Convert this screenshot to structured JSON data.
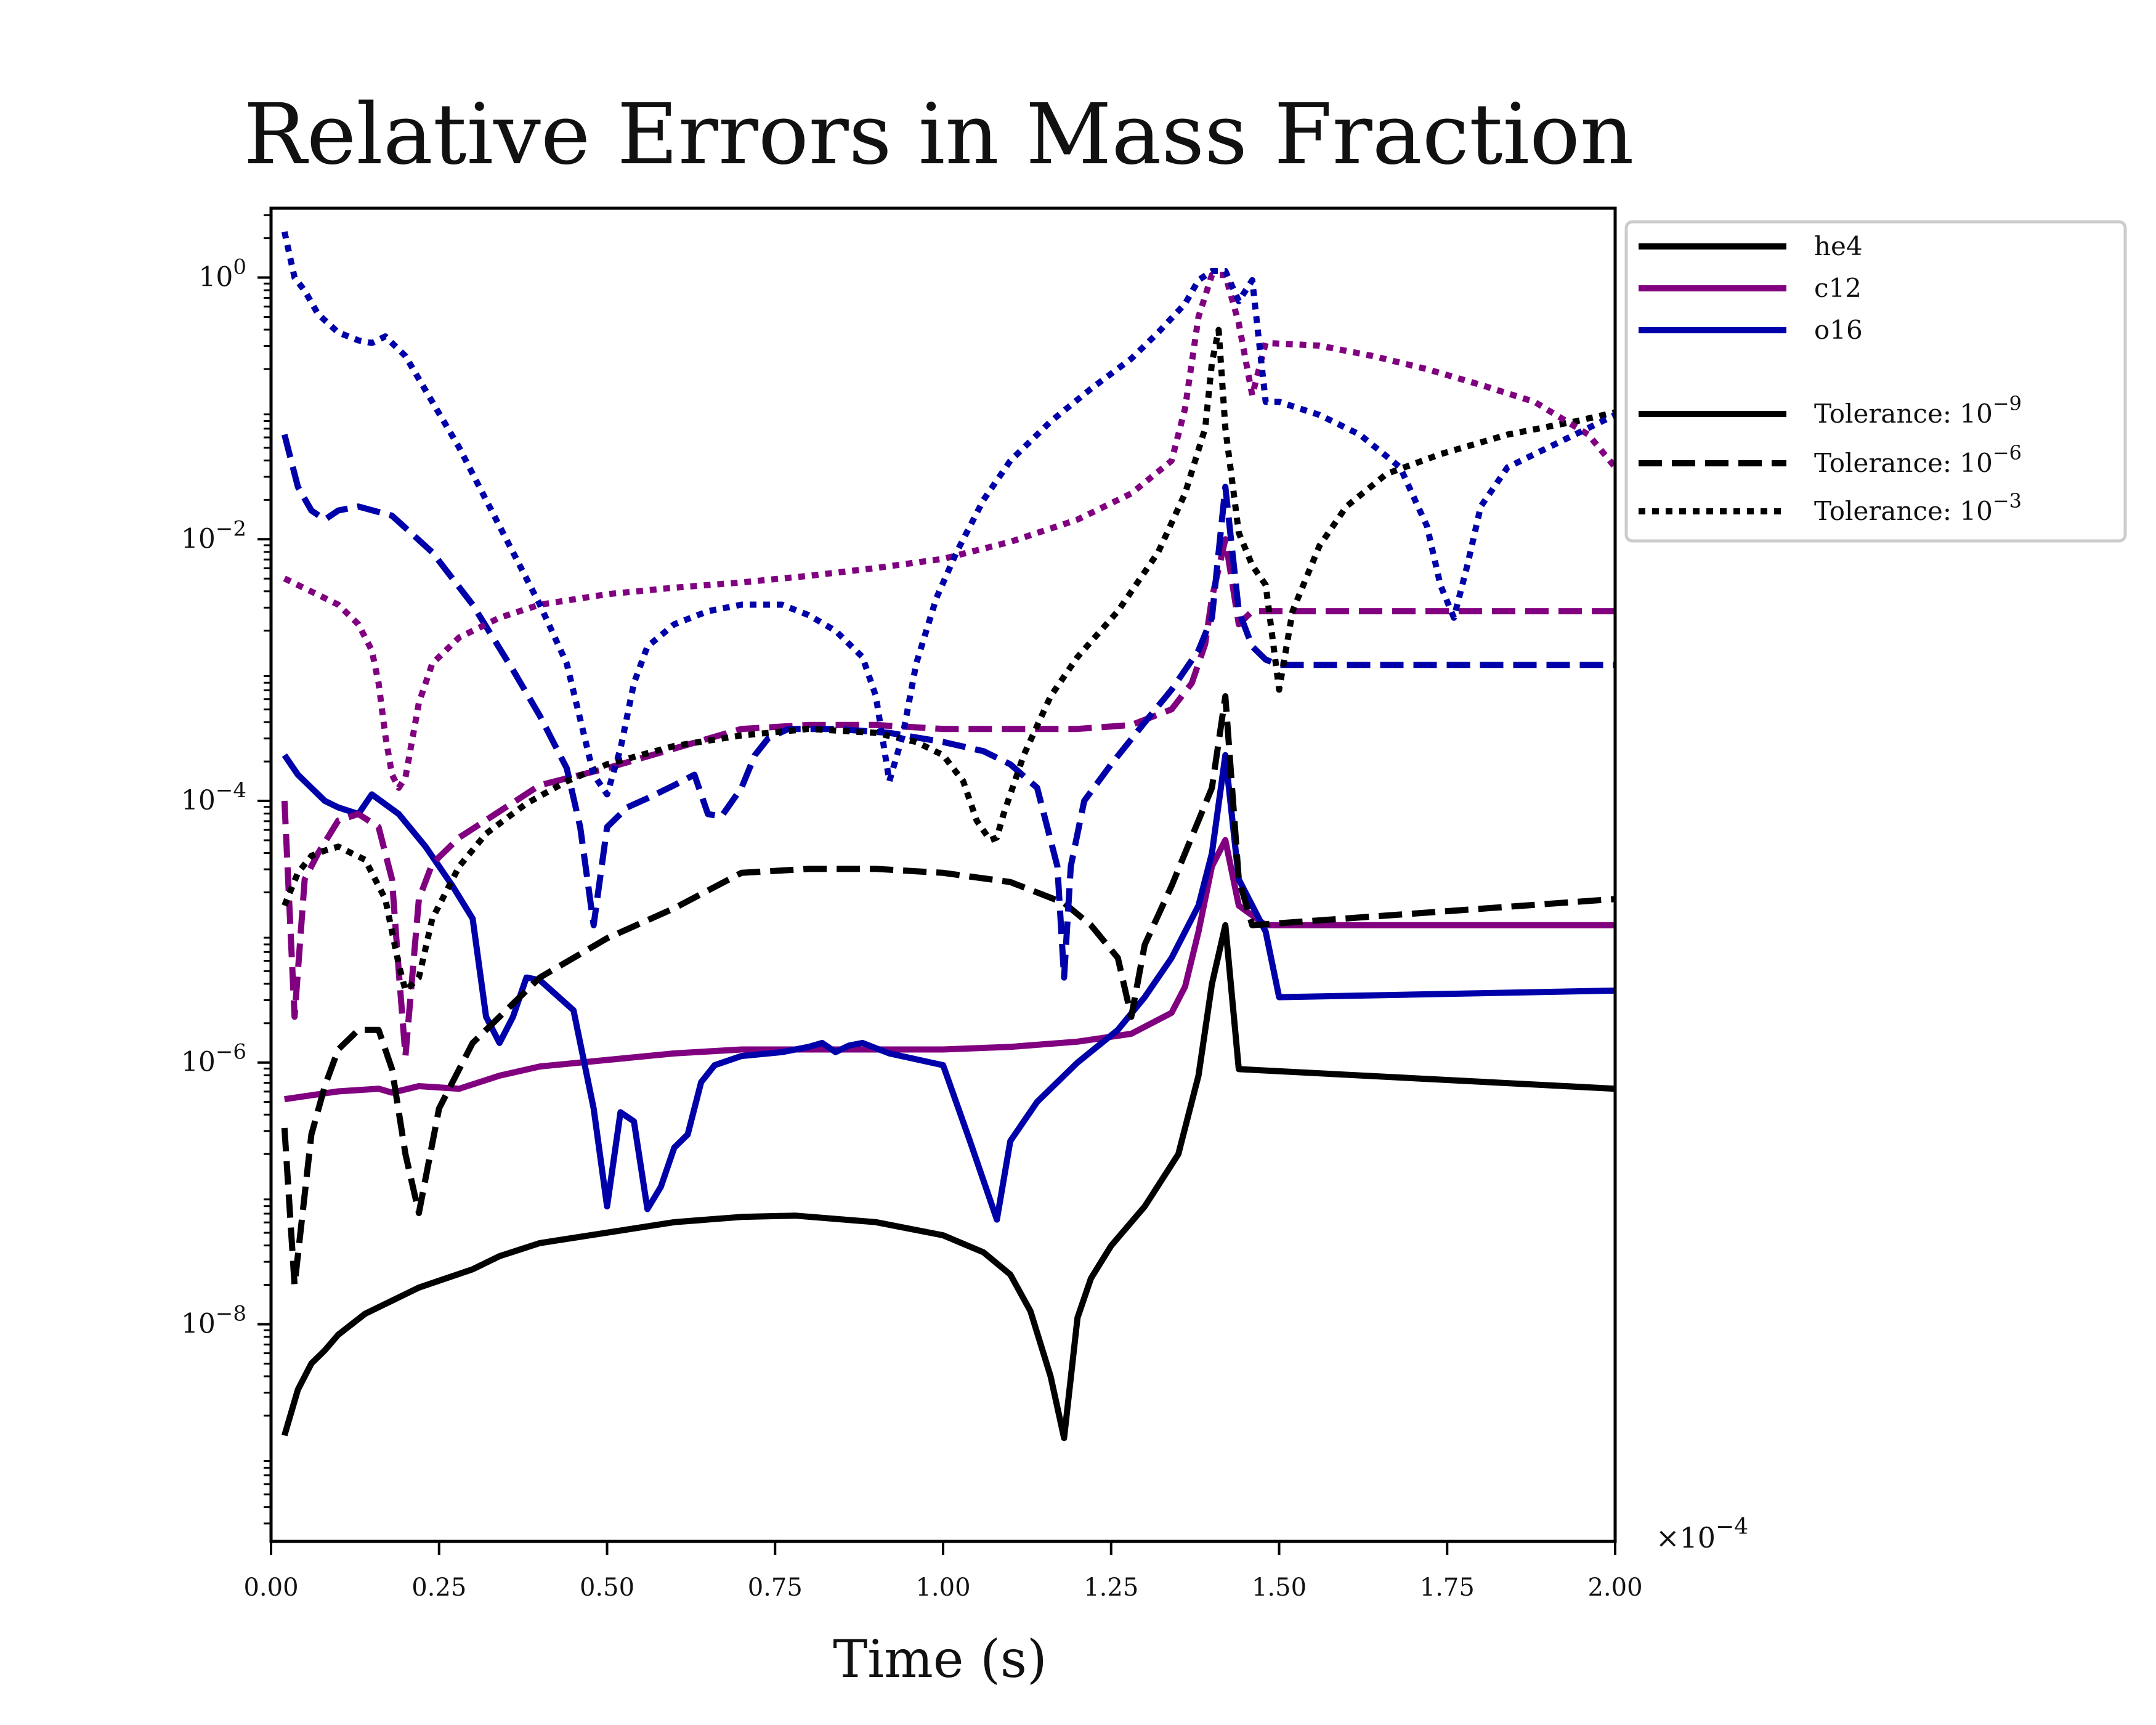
{
  "chart_data": {
    "type": "line",
    "title": "Relative Errors in Mass Fraction",
    "xlabel": "Time (s)",
    "ylabel": "",
    "x_multiplier_label": "×10",
    "x_multiplier_exp": "−4",
    "xlim": [
      0.0,
      2.0
    ],
    "ylim_log10": [
      -9.66,
      0.53
    ],
    "yscale": "log",
    "grid": false,
    "x_ticks": [
      "0.00",
      "0.25",
      "0.50",
      "0.75",
      "1.00",
      "1.25",
      "1.50",
      "1.75",
      "2.00"
    ],
    "y_ticks": [
      {
        "base": "10",
        "exp": "0",
        "log10": 0
      },
      {
        "base": "10",
        "exp": "−2",
        "log10": -2
      },
      {
        "base": "10",
        "exp": "−4",
        "log10": -4
      },
      {
        "base": "10",
        "exp": "−6",
        "log10": -6
      },
      {
        "base": "10",
        "exp": "−8",
        "log10": -8
      }
    ],
    "legend": {
      "placement": "outside-top-right",
      "species": [
        {
          "name": "he4",
          "color": "#000000"
        },
        {
          "name": "c12",
          "color": "#800080"
        },
        {
          "name": "o16",
          "color": "#0000aa"
        }
      ],
      "tolerances": [
        {
          "label": "Tolerance: 10",
          "exp": "−9",
          "style": "solid"
        },
        {
          "label": "Tolerance: 10",
          "exp": "−6",
          "style": "dashed"
        },
        {
          "label": "Tolerance: 10",
          "exp": "−3",
          "style": "dotted"
        }
      ]
    },
    "series": [
      {
        "species": "he4",
        "tolerance": "1e-9",
        "style": "solid",
        "color": "#000000",
        "x": [
          0.02,
          0.04,
          0.06,
          0.08,
          0.1,
          0.12,
          0.14,
          0.18,
          0.22,
          0.26,
          0.3,
          0.34,
          0.4,
          0.5,
          0.6,
          0.7,
          0.78,
          0.9,
          1.0,
          1.06,
          1.1,
          1.13,
          1.16,
          1.18,
          1.2,
          1.22,
          1.25,
          1.3,
          1.35,
          1.38,
          1.4,
          1.42,
          1.44,
          2.0
        ],
        "y": [
          -8.85,
          -8.5,
          -8.3,
          -8.2,
          -8.08,
          -8.0,
          -7.92,
          -7.82,
          -7.72,
          -7.65,
          -7.58,
          -7.48,
          -7.38,
          -7.3,
          -7.22,
          -7.18,
          -7.17,
          -7.22,
          -7.32,
          -7.45,
          -7.62,
          -7.9,
          -8.4,
          -8.87,
          -7.95,
          -7.65,
          -7.4,
          -7.1,
          -6.7,
          -6.1,
          -5.4,
          -4.95,
          -6.05,
          -6.2
        ]
      },
      {
        "species": "c12",
        "tolerance": "1e-9",
        "style": "solid",
        "color": "#800080",
        "x": [
          0.02,
          0.06,
          0.1,
          0.16,
          0.18,
          0.22,
          0.28,
          0.34,
          0.4,
          0.5,
          0.6,
          0.7,
          0.8,
          0.9,
          1.0,
          1.1,
          1.2,
          1.28,
          1.34,
          1.36,
          1.38,
          1.4,
          1.42,
          1.44,
          1.48,
          2.0
        ],
        "y": [
          -6.28,
          -6.25,
          -6.22,
          -6.2,
          -6.23,
          -6.18,
          -6.2,
          -6.1,
          -6.03,
          -5.98,
          -5.93,
          -5.9,
          -5.9,
          -5.9,
          -5.9,
          -5.88,
          -5.84,
          -5.78,
          -5.62,
          -5.42,
          -5.0,
          -4.5,
          -4.3,
          -4.8,
          -4.95,
          -4.95
        ]
      },
      {
        "species": "o16",
        "tolerance": "1e-9",
        "style": "solid",
        "color": "#0000aa",
        "x": [
          0.02,
          0.04,
          0.08,
          0.1,
          0.13,
          0.15,
          0.19,
          0.23,
          0.27,
          0.3,
          0.32,
          0.34,
          0.36,
          0.38,
          0.4,
          0.45,
          0.48,
          0.5,
          0.52,
          0.54,
          0.56,
          0.58,
          0.6,
          0.62,
          0.64,
          0.66,
          0.7,
          0.76,
          0.8,
          0.82,
          0.84,
          0.86,
          0.88,
          0.92,
          1.0,
          1.04,
          1.08,
          1.1,
          1.14,
          1.2,
          1.26,
          1.3,
          1.34,
          1.38,
          1.4,
          1.42,
          1.44,
          1.48,
          1.5,
          2.0
        ],
        "y": [
          -3.65,
          -3.8,
          -4.0,
          -4.05,
          -4.1,
          -3.95,
          -4.1,
          -4.35,
          -4.65,
          -4.9,
          -5.65,
          -5.85,
          -5.65,
          -5.35,
          -5.37,
          -5.6,
          -6.35,
          -7.1,
          -6.38,
          -6.45,
          -7.12,
          -6.95,
          -6.65,
          -6.55,
          -6.15,
          -6.02,
          -5.95,
          -5.92,
          -5.88,
          -5.85,
          -5.92,
          -5.87,
          -5.85,
          -5.93,
          -6.02,
          -6.6,
          -7.2,
          -6.6,
          -6.3,
          -6.0,
          -5.75,
          -5.5,
          -5.2,
          -4.8,
          -4.4,
          -3.65,
          -4.6,
          -5.0,
          -5.5,
          -5.45
        ]
      },
      {
        "species": "he4",
        "tolerance": "1e-6",
        "style": "dashed",
        "color": "#000000",
        "x": [
          0.02,
          0.035,
          0.06,
          0.08,
          0.1,
          0.13,
          0.16,
          0.18,
          0.2,
          0.22,
          0.25,
          0.3,
          0.4,
          0.5,
          0.6,
          0.7,
          0.8,
          0.9,
          1.0,
          1.1,
          1.18,
          1.22,
          1.26,
          1.28,
          1.3,
          1.34,
          1.38,
          1.4,
          1.42,
          1.44,
          1.46,
          2.0
        ],
        "y": [
          -6.5,
          -7.7,
          -6.55,
          -6.18,
          -5.9,
          -5.75,
          -5.75,
          -6.05,
          -6.7,
          -7.15,
          -6.35,
          -5.85,
          -5.35,
          -5.05,
          -4.82,
          -4.55,
          -4.52,
          -4.52,
          -4.55,
          -4.62,
          -4.78,
          -4.95,
          -5.2,
          -5.65,
          -5.1,
          -4.65,
          -4.15,
          -3.9,
          -3.2,
          -4.6,
          -4.95,
          -4.75
        ]
      },
      {
        "species": "c12",
        "tolerance": "1e-6",
        "style": "dashed",
        "color": "#800080",
        "x": [
          0.02,
          0.035,
          0.05,
          0.07,
          0.1,
          0.13,
          0.16,
          0.18,
          0.19,
          0.2,
          0.22,
          0.24,
          0.28,
          0.34,
          0.4,
          0.5,
          0.6,
          0.7,
          0.8,
          0.9,
          1.0,
          1.1,
          1.2,
          1.28,
          1.34,
          1.37,
          1.39,
          1.4,
          1.42,
          1.44,
          1.46,
          2.0
        ],
        "y": [
          -4.0,
          -5.65,
          -4.6,
          -4.4,
          -4.15,
          -4.1,
          -4.2,
          -4.6,
          -5.3,
          -5.95,
          -4.75,
          -4.48,
          -4.28,
          -4.08,
          -3.88,
          -3.75,
          -3.6,
          -3.45,
          -3.42,
          -3.42,
          -3.45,
          -3.45,
          -3.45,
          -3.42,
          -3.3,
          -3.1,
          -2.8,
          -2.45,
          -2.0,
          -2.65,
          -2.55,
          -2.55
        ]
      },
      {
        "species": "o16",
        "tolerance": "1e-6",
        "style": "dashed",
        "color": "#0000aa",
        "x": [
          0.02,
          0.04,
          0.06,
          0.08,
          0.1,
          0.13,
          0.18,
          0.24,
          0.3,
          0.36,
          0.4,
          0.44,
          0.46,
          0.48,
          0.5,
          0.53,
          0.56,
          0.6,
          0.63,
          0.65,
          0.67,
          0.7,
          0.72,
          0.74,
          0.77,
          0.84,
          0.92,
          1.0,
          1.06,
          1.1,
          1.14,
          1.17,
          1.18,
          1.19,
          1.21,
          1.25,
          1.3,
          1.34,
          1.38,
          1.4,
          1.42,
          1.44,
          1.46,
          1.48,
          1.5,
          2.0
        ],
        "y": [
          -1.2,
          -1.6,
          -1.78,
          -1.85,
          -1.78,
          -1.75,
          -1.82,
          -2.1,
          -2.5,
          -3.0,
          -3.35,
          -3.75,
          -4.2,
          -4.95,
          -4.2,
          -4.05,
          -3.98,
          -3.88,
          -3.8,
          -4.1,
          -4.12,
          -3.9,
          -3.65,
          -3.52,
          -3.45,
          -3.45,
          -3.48,
          -3.55,
          -3.62,
          -3.72,
          -3.9,
          -4.5,
          -5.35,
          -4.5,
          -4.0,
          -3.72,
          -3.4,
          -3.15,
          -2.85,
          -2.6,
          -1.6,
          -2.55,
          -2.82,
          -2.92,
          -2.96,
          -2.96
        ]
      },
      {
        "species": "he4",
        "tolerance": "1e-3",
        "style": "dotted",
        "color": "#000000",
        "x": [
          0.02,
          0.04,
          0.06,
          0.08,
          0.1,
          0.14,
          0.17,
          0.19,
          0.2,
          0.22,
          0.24,
          0.28,
          0.32,
          0.38,
          0.44,
          0.5,
          0.6,
          0.7,
          0.8,
          0.9,
          0.96,
          1.0,
          1.03,
          1.05,
          1.07,
          1.08,
          1.09,
          1.12,
          1.16,
          1.2,
          1.26,
          1.32,
          1.36,
          1.39,
          1.4,
          1.41,
          1.42,
          1.44,
          1.46,
          1.48,
          1.5,
          1.52,
          1.56,
          1.6,
          1.66,
          1.74,
          1.84,
          1.94,
          2.0
        ],
        "y": [
          -4.8,
          -4.55,
          -4.42,
          -4.38,
          -4.35,
          -4.45,
          -4.75,
          -5.25,
          -5.45,
          -5.35,
          -4.9,
          -4.5,
          -4.25,
          -4.02,
          -3.85,
          -3.72,
          -3.58,
          -3.5,
          -3.45,
          -3.48,
          -3.55,
          -3.65,
          -3.85,
          -4.15,
          -4.3,
          -4.28,
          -4.1,
          -3.65,
          -3.2,
          -2.9,
          -2.55,
          -2.1,
          -1.65,
          -1.15,
          -0.65,
          -0.4,
          -1.15,
          -1.95,
          -2.2,
          -2.35,
          -3.15,
          -2.55,
          -2.05,
          -1.75,
          -1.5,
          -1.35,
          -1.2,
          -1.1,
          -1.03
        ]
      },
      {
        "species": "c12",
        "tolerance": "1e-3",
        "style": "dotted",
        "color": "#800080",
        "x": [
          0.02,
          0.06,
          0.1,
          0.13,
          0.15,
          0.16,
          0.17,
          0.18,
          0.19,
          0.2,
          0.22,
          0.24,
          0.28,
          0.34,
          0.4,
          0.5,
          0.6,
          0.7,
          0.8,
          0.9,
          1.0,
          1.1,
          1.2,
          1.28,
          1.34,
          1.36,
          1.38,
          1.4,
          1.42,
          1.44,
          1.46,
          1.48,
          1.56,
          1.64,
          1.72,
          1.8,
          1.88,
          1.96,
          2.0
        ],
        "y": [
          -2.3,
          -2.4,
          -2.5,
          -2.65,
          -2.85,
          -3.1,
          -3.5,
          -3.8,
          -3.9,
          -3.82,
          -3.25,
          -2.95,
          -2.75,
          -2.6,
          -2.5,
          -2.42,
          -2.37,
          -2.33,
          -2.28,
          -2.22,
          -2.15,
          -2.02,
          -1.85,
          -1.65,
          -1.4,
          -1.0,
          -0.3,
          0.02,
          0.02,
          -0.35,
          -0.9,
          -0.5,
          -0.52,
          -0.6,
          -0.7,
          -0.82,
          -0.95,
          -1.2,
          -1.45
        ]
      },
      {
        "species": "o16",
        "tolerance": "1e-3",
        "style": "dotted",
        "color": "#0000aa",
        "x": [
          0.02,
          0.035,
          0.05,
          0.07,
          0.1,
          0.13,
          0.15,
          0.17,
          0.2,
          0.24,
          0.28,
          0.32,
          0.36,
          0.4,
          0.44,
          0.48,
          0.5,
          0.52,
          0.54,
          0.56,
          0.6,
          0.65,
          0.7,
          0.76,
          0.8,
          0.84,
          0.88,
          0.9,
          0.92,
          0.94,
          0.96,
          0.99,
          1.02,
          1.06,
          1.1,
          1.16,
          1.22,
          1.28,
          1.32,
          1.36,
          1.38,
          1.4,
          1.42,
          1.44,
          1.46,
          1.48,
          1.5,
          1.56,
          1.62,
          1.68,
          1.72,
          1.74,
          1.76,
          1.78,
          1.8,
          1.84,
          1.9,
          1.96,
          2.0
        ],
        "y": [
          0.35,
          0.0,
          -0.1,
          -0.28,
          -0.42,
          -0.48,
          -0.5,
          -0.45,
          -0.6,
          -0.95,
          -1.3,
          -1.7,
          -2.1,
          -2.5,
          -2.95,
          -3.8,
          -3.95,
          -3.6,
          -3.1,
          -2.82,
          -2.65,
          -2.55,
          -2.5,
          -2.5,
          -2.58,
          -2.7,
          -2.9,
          -3.2,
          -3.85,
          -3.5,
          -2.95,
          -2.45,
          -2.1,
          -1.7,
          -1.4,
          -1.1,
          -0.85,
          -0.62,
          -0.42,
          -0.2,
          -0.02,
          0.05,
          0.05,
          -0.18,
          -0.02,
          -0.95,
          -0.95,
          -1.05,
          -1.2,
          -1.45,
          -1.9,
          -2.35,
          -2.6,
          -2.2,
          -1.75,
          -1.45,
          -1.3,
          -1.15,
          -1.05
        ]
      }
    ]
  }
}
